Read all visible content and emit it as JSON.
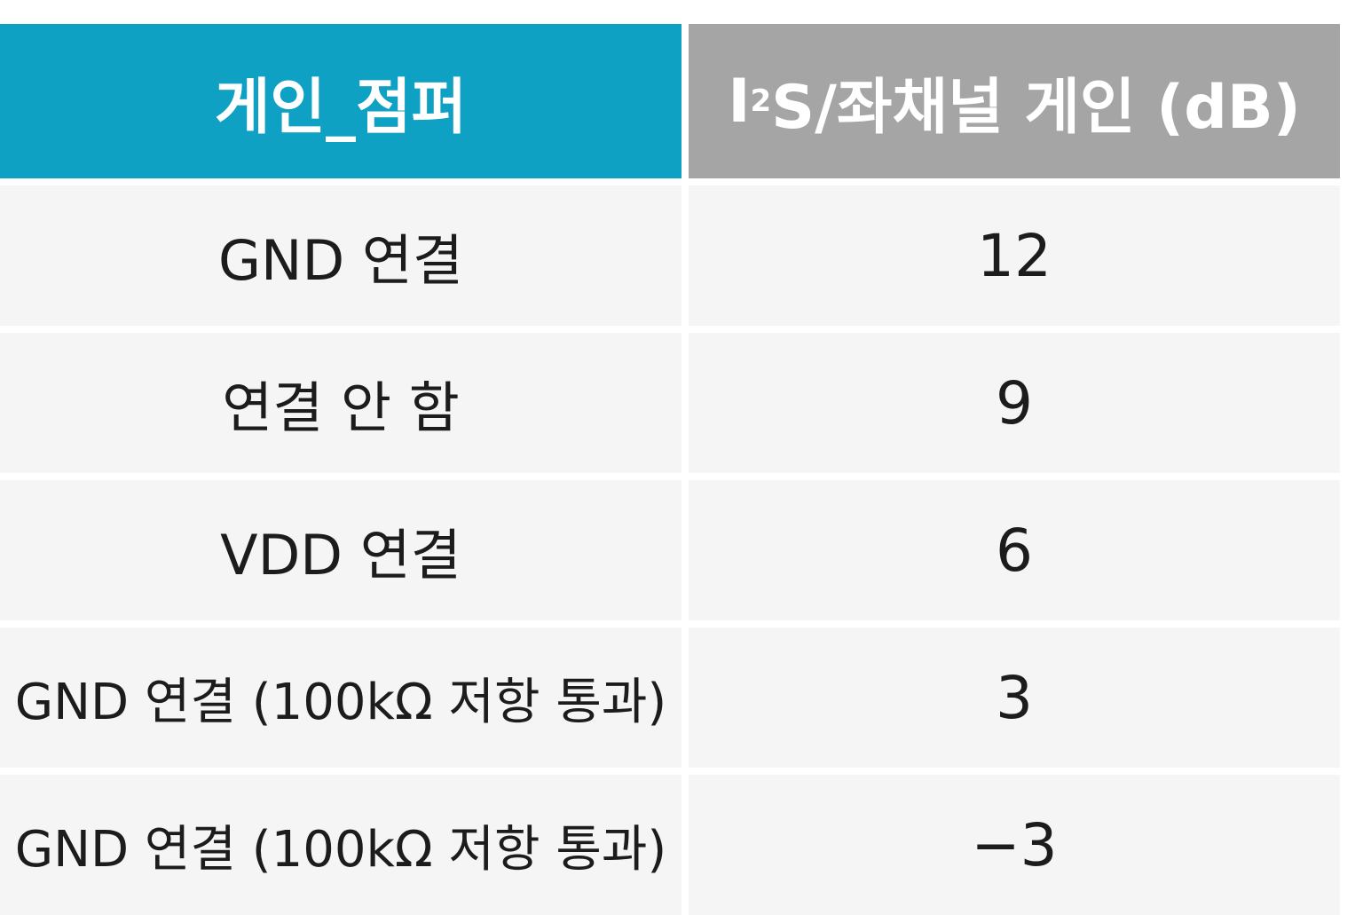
{
  "table": {
    "header": {
      "col1": "게인_점퍼",
      "col2_prefix": "I",
      "col2_sup": "2",
      "col2_rest": "S/좌채널 게인 (dB)"
    },
    "rows": [
      {
        "jumper": "GND 연결",
        "gain": "12"
      },
      {
        "jumper": "연결 안 함",
        "gain": "9"
      },
      {
        "jumper": "VDD 연결",
        "gain": "6"
      },
      {
        "jumper": "GND 연결 (100kΩ 저항 통과)",
        "gain": "3"
      },
      {
        "jumper": "GND 연결 (100kΩ 저항 통과)",
        "gain": "−3"
      }
    ]
  },
  "colors": {
    "header_col1_bg": "#0ea1c3",
    "header_col2_bg": "#a5a5a5",
    "row_bg": "#f5f5f5"
  }
}
